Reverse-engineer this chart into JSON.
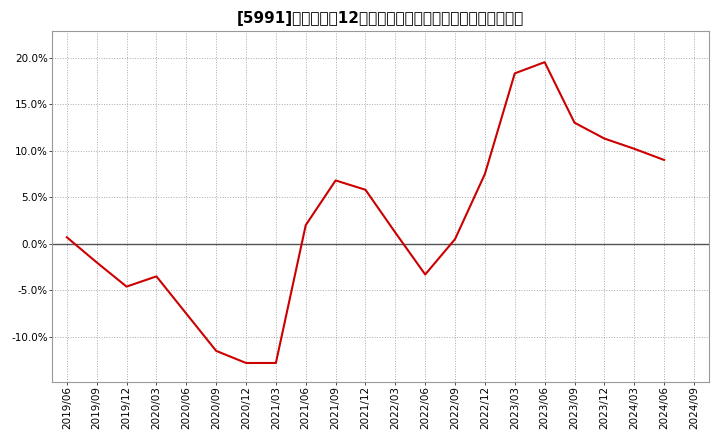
{
  "title": "[5991]　売上高の12か月移動合計の対前年同期増減率の推移",
  "line_color": "#cc0000",
  "background_color": "#ffffff",
  "plot_bg_color": "#ffffff",
  "grid_color": "#aaaaaa",
  "zero_line_color": "#555555",
  "ylim": [
    -0.148,
    0.228
  ],
  "yticks": [
    -0.1,
    -0.05,
    0.0,
    0.05,
    0.1,
    0.15,
    0.2
  ],
  "dates": [
    "2019/06",
    "2019/09",
    "2019/12",
    "2020/03",
    "2020/06",
    "2020/09",
    "2020/12",
    "2021/03",
    "2021/06",
    "2021/09",
    "2021/12",
    "2022/03",
    "2022/06",
    "2022/09",
    "2022/12",
    "2023/03",
    "2023/06",
    "2023/09",
    "2023/12",
    "2024/03",
    "2024/06",
    "2024/09"
  ],
  "values": [
    0.007,
    -0.02,
    -0.046,
    -0.035,
    -0.075,
    -0.115,
    -0.128,
    -0.128,
    0.02,
    0.068,
    0.058,
    0.012,
    -0.033,
    0.005,
    0.075,
    0.183,
    0.195,
    0.13,
    0.113,
    0.102,
    0.09,
    null
  ],
  "title_fontsize": 11,
  "tick_fontsize": 7.5
}
